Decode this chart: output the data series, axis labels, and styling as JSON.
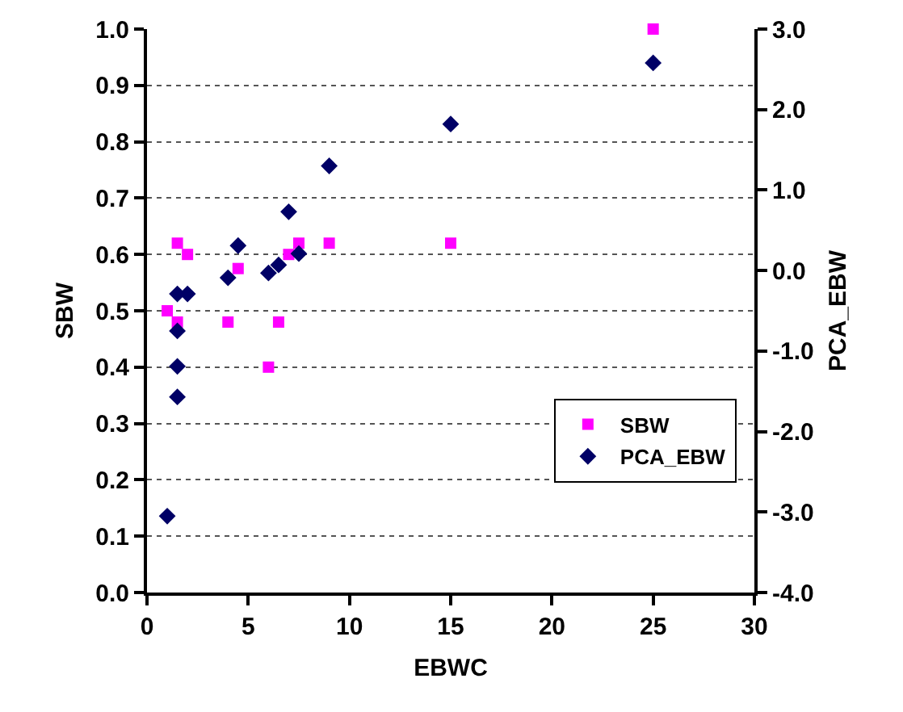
{
  "chart_data": {
    "type": "scatter",
    "xlabel": "EBWC",
    "ylabel": "SBW",
    "y2label": "PCA_EBW",
    "xlim": [
      0,
      30
    ],
    "xticks": [
      0,
      5,
      10,
      15,
      20,
      25,
      30
    ],
    "ylim": [
      0,
      1
    ],
    "yticks": [
      {
        "value": 0,
        "label": "0.0"
      },
      {
        "value": 0.1,
        "label": "0.1"
      },
      {
        "value": 0.2,
        "label": "0.2"
      },
      {
        "value": 0.3,
        "label": "0.3"
      },
      {
        "value": 0.4,
        "label": "0.4"
      },
      {
        "value": 0.5,
        "label": "0.5"
      },
      {
        "value": 0.6,
        "label": "0.6"
      },
      {
        "value": 0.7,
        "label": "0.7"
      },
      {
        "value": 0.8,
        "label": "0.8"
      },
      {
        "value": 0.9,
        "label": "0.9"
      },
      {
        "value": 1,
        "label": "1.0"
      }
    ],
    "y2lim": [
      -4,
      3
    ],
    "y2ticks": [
      {
        "value": -4,
        "label": "-4.0"
      },
      {
        "value": -3,
        "label": "-3.0"
      },
      {
        "value": -2,
        "label": "-2.0"
      },
      {
        "value": -1,
        "label": "-1.0"
      },
      {
        "value": 0,
        "label": "0.0"
      },
      {
        "value": 1,
        "label": "1.0"
      },
      {
        "value": 2,
        "label": "2.0"
      },
      {
        "value": 3,
        "label": "3.0"
      }
    ],
    "grid": "y",
    "legend": "right",
    "series": [
      {
        "name": "SBW",
        "color": "#ff00ff",
        "marker": "square",
        "x": [
          1,
          1.5,
          1.5,
          2,
          4,
          4.5,
          6,
          6.5,
          7,
          7.5,
          9,
          15,
          25
        ],
        "values": [
          0.5,
          0.62,
          0.48,
          0.6,
          0.48,
          0.575,
          0.4,
          0.48,
          0.6,
          0.62,
          0.62,
          0.62,
          1.0
        ]
      },
      {
        "name": "PCA_EBW",
        "color": "#000066",
        "marker": "diamond",
        "axis": "y2",
        "x": [
          1,
          1.5,
          1.5,
          1.5,
          1.5,
          2,
          4,
          4.5,
          6,
          6.5,
          7,
          7.5,
          9,
          15,
          25
        ],
        "values": [
          -3.05,
          -1.57,
          -1.19,
          -0.75,
          -0.29,
          -0.29,
          -0.09,
          0.31,
          -0.03,
          0.07,
          0.73,
          0.21,
          1.3,
          1.82,
          2.58
        ]
      }
    ]
  }
}
